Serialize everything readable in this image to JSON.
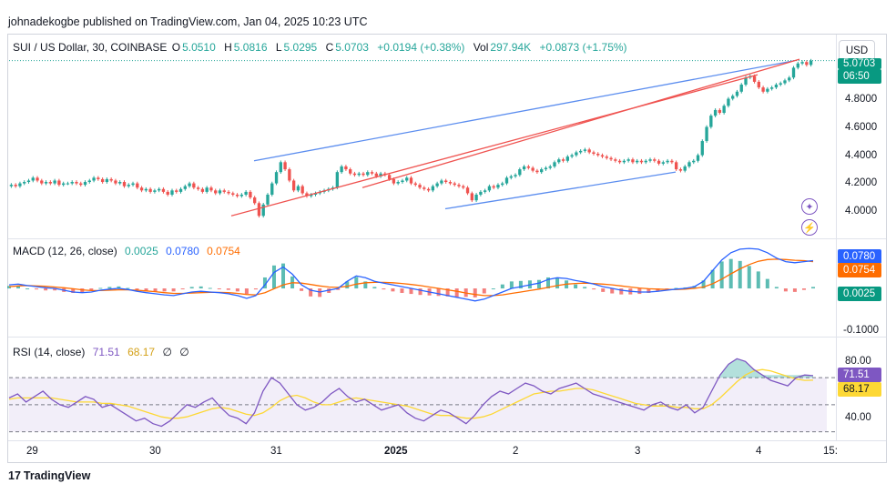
{
  "header": {
    "publisher_line": "johnadekogbe published on TradingView.com, Jan 04, 2025 10:23 UTC"
  },
  "symbol_legend": {
    "title": "SUI / US Dollar, 30, COINBASE",
    "o_label": "O",
    "o_value": "5.0510",
    "h_label": "H",
    "h_value": "5.0816",
    "l_label": "L",
    "l_value": "5.0295",
    "c_label": "C",
    "c_value": "5.0703",
    "change": "+0.0194 (+0.38%)",
    "vol_label": "Vol",
    "vol_value": "297.94K",
    "vol_change": "+0.0873 (+1.75%)"
  },
  "currency_button": "USD",
  "price_tags": {
    "current": "5.0703",
    "countdown": "06:50"
  },
  "price_axis": [
    "4.8000",
    "4.6000",
    "4.4000",
    "4.2000",
    "4.0000"
  ],
  "macd_legend": {
    "title": "MACD (12, 26, close)",
    "v1": "0.0025",
    "v2": "0.0780",
    "v3": "0.0754"
  },
  "macd_axis": {
    "tag_macd": "0.0780",
    "tag_signal": "0.0754",
    "tag_hist": "0.0025",
    "low": "-0.1000"
  },
  "rsi_legend": {
    "title": "RSI (14, close)",
    "rsi": "71.51",
    "ma": "68.17",
    "x1": "∅",
    "x2": "∅"
  },
  "rsi_axis": {
    "high": "80.00",
    "low": "40.00",
    "tag_rsi": "71.51",
    "tag_ma": "68.17"
  },
  "time_axis": [
    "29",
    "30",
    "31",
    "2025",
    "2",
    "3",
    "4",
    "15:"
  ],
  "footer": {
    "logo_mark": "17",
    "logo_text": "TradingView"
  },
  "colors": {
    "up": "#26a69a",
    "down": "#ef5350",
    "macd": "#2962ff",
    "signal": "#ff6d00",
    "rsi": "#7e57c2",
    "rsi_ma": "#fdd835",
    "trend_blue": "#5b8def",
    "trend_red": "#ef5350"
  },
  "chart_data": [
    {
      "type": "candlestick",
      "title": "SUI / US Dollar, 30, COINBASE",
      "ylim": [
        3.92,
        5.1
      ],
      "x_ticks": [
        "29",
        "30",
        "31",
        "2025",
        "2",
        "3",
        "4",
        "15:"
      ],
      "close_series": [
        4.19,
        4.18,
        4.2,
        4.21,
        4.22,
        4.24,
        4.22,
        4.2,
        4.21,
        4.2,
        4.22,
        4.19,
        4.2,
        4.2,
        4.21,
        4.2,
        4.19,
        4.21,
        4.22,
        4.24,
        4.23,
        4.21,
        4.23,
        4.22,
        4.2,
        4.21,
        4.18,
        4.19,
        4.2,
        4.17,
        4.15,
        4.16,
        4.14,
        4.15,
        4.16,
        4.14,
        4.12,
        4.15,
        4.14,
        4.16,
        4.18,
        4.2,
        4.17,
        4.16,
        4.14,
        4.17,
        4.15,
        4.13,
        4.15,
        4.14,
        4.13,
        4.12,
        4.11,
        4.12,
        4.14,
        4.1,
        4.06,
        3.97,
        4.05,
        4.12,
        4.2,
        4.28,
        4.35,
        4.3,
        4.22,
        4.15,
        4.18,
        4.13,
        4.11,
        4.12,
        4.13,
        4.14,
        4.15,
        4.16,
        4.17,
        4.28,
        4.32,
        4.3,
        4.27,
        4.26,
        4.27,
        4.26,
        4.28,
        4.27,
        4.25,
        4.27,
        4.26,
        4.23,
        4.2,
        4.21,
        4.22,
        4.24,
        4.2,
        4.19,
        4.17,
        4.16,
        4.15,
        4.18,
        4.2,
        4.22,
        4.21,
        4.2,
        4.19,
        4.18,
        4.17,
        4.13,
        4.08,
        4.12,
        4.14,
        4.15,
        4.18,
        4.17,
        4.19,
        4.2,
        4.24,
        4.25,
        4.26,
        4.3,
        4.32,
        4.31,
        4.29,
        4.28,
        4.3,
        4.31,
        4.32,
        4.35,
        4.37,
        4.36,
        4.39,
        4.4,
        4.42,
        4.43,
        4.44,
        4.42,
        4.41,
        4.4,
        4.39,
        4.38,
        4.37,
        4.36,
        4.35,
        4.36,
        4.37,
        4.35,
        4.36,
        4.35,
        4.36,
        4.37,
        4.36,
        4.34,
        4.35,
        4.36,
        4.35,
        4.3,
        4.29,
        4.32,
        4.35,
        4.36,
        4.4,
        4.5,
        4.6,
        4.68,
        4.72,
        4.7,
        4.75,
        4.8,
        4.82,
        4.85,
        4.9,
        4.95,
        4.96,
        4.92,
        4.88,
        4.85,
        4.87,
        4.88,
        4.9,
        4.91,
        4.93,
        4.95,
        5.02,
        5.05,
        5.06,
        5.04,
        5.07
      ],
      "trend_lines": [
        {
          "color": "blue",
          "from": [
            "31 (early)",
            4.36
          ],
          "to": [
            "4 (late)",
            5.05
          ]
        },
        {
          "color": "blue",
          "from": [
            "2025 (mid)",
            4.02
          ],
          "to": [
            "3 (mid)",
            4.28
          ]
        },
        {
          "color": "red",
          "from": [
            "30 (late)",
            3.97
          ],
          "to": [
            "4 (early)",
            4.97
          ]
        },
        {
          "color": "red",
          "from": [
            "31 (late)",
            4.17
          ],
          "to": [
            "4 (late)",
            5.07
          ]
        }
      ]
    },
    {
      "type": "line",
      "title": "MACD (12, 26, close)",
      "series": [
        {
          "name": "MACD",
          "values": [
            0.01,
            0.012,
            0.008,
            0.005,
            0.002,
            0.0,
            -0.005,
            -0.01,
            -0.012,
            -0.01,
            -0.005,
            -0.002,
            0.0,
            -0.003,
            -0.008,
            -0.012,
            -0.015,
            -0.018,
            -0.02,
            -0.015,
            -0.01,
            -0.008,
            -0.01,
            -0.012,
            -0.015,
            -0.02,
            -0.028,
            -0.02,
            0.01,
            0.045,
            0.06,
            0.04,
            0.01,
            -0.005,
            -0.01,
            -0.005,
            0.0,
            0.02,
            0.035,
            0.03,
            0.02,
            0.015,
            0.01,
            0.005,
            0.0,
            -0.005,
            -0.01,
            -0.015,
            -0.02,
            -0.025,
            -0.03,
            -0.035,
            -0.03,
            -0.02,
            -0.01,
            0.0,
            0.005,
            0.01,
            0.015,
            0.025,
            0.03,
            0.028,
            0.022,
            0.018,
            0.012,
            0.005,
            0.0,
            -0.005,
            -0.008,
            -0.01,
            -0.01,
            -0.008,
            -0.005,
            -0.002,
            0.0,
            0.005,
            0.02,
            0.05,
            0.08,
            0.1,
            0.11,
            0.112,
            0.11,
            0.1,
            0.085,
            0.075,
            0.072,
            0.075,
            0.078
          ]
        },
        {
          "name": "Signal",
          "values": [
            0.005,
            0.007,
            0.008,
            0.007,
            0.006,
            0.004,
            0.002,
            -0.001,
            -0.004,
            -0.006,
            -0.006,
            -0.005,
            -0.004,
            -0.004,
            -0.005,
            -0.007,
            -0.009,
            -0.012,
            -0.014,
            -0.014,
            -0.013,
            -0.012,
            -0.011,
            -0.011,
            -0.012,
            -0.014,
            -0.017,
            -0.018,
            -0.012,
            -0.001,
            0.01,
            0.016,
            0.015,
            0.011,
            0.007,
            0.004,
            0.003,
            0.006,
            0.012,
            0.016,
            0.017,
            0.017,
            0.016,
            0.014,
            0.011,
            0.008,
            0.004,
            0.0,
            -0.004,
            -0.008,
            -0.013,
            -0.017,
            -0.02,
            -0.02,
            -0.018,
            -0.014,
            -0.01,
            -0.006,
            -0.002,
            0.003,
            0.008,
            0.012,
            0.014,
            0.015,
            0.014,
            0.012,
            0.01,
            0.007,
            0.004,
            0.001,
            -0.001,
            -0.002,
            -0.003,
            -0.003,
            -0.002,
            0.0,
            0.004,
            0.013,
            0.026,
            0.041,
            0.055,
            0.067,
            0.076,
            0.081,
            0.082,
            0.081,
            0.079,
            0.078,
            0.075
          ]
        }
      ],
      "ylim": [
        -0.13,
        0.12
      ],
      "y_ticks": [
        "-0.1000"
      ]
    },
    {
      "type": "line",
      "title": "RSI (14, close)",
      "series": [
        {
          "name": "RSI",
          "values": [
            55,
            58,
            52,
            56,
            60,
            54,
            50,
            48,
            52,
            56,
            54,
            48,
            50,
            46,
            42,
            38,
            40,
            36,
            34,
            38,
            44,
            50,
            48,
            52,
            55,
            48,
            42,
            40,
            36,
            44,
            60,
            70,
            66,
            58,
            50,
            46,
            48,
            52,
            58,
            62,
            56,
            52,
            54,
            50,
            46,
            48,
            50,
            44,
            40,
            38,
            42,
            46,
            44,
            40,
            36,
            42,
            50,
            56,
            60,
            58,
            62,
            66,
            64,
            60,
            58,
            62,
            64,
            66,
            62,
            58,
            56,
            54,
            52,
            50,
            48,
            46,
            50,
            52,
            48,
            46,
            50,
            44,
            48,
            60,
            72,
            80,
            84,
            82,
            76,
            72,
            68,
            66,
            64,
            70,
            72,
            71.51
          ]
        },
        {
          "name": "RSI-based MA",
          "values": [
            54,
            55,
            55,
            55,
            55,
            55,
            54,
            53,
            52,
            52,
            52,
            51,
            51,
            50,
            49,
            47,
            45,
            43,
            41,
            40,
            40,
            41,
            43,
            45,
            47,
            48,
            47,
            45,
            43,
            42,
            44,
            48,
            53,
            56,
            57,
            55,
            52,
            50,
            50,
            52,
            54,
            55,
            54,
            53,
            52,
            51,
            50,
            49,
            47,
            45,
            43,
            42,
            42,
            41,
            40,
            40,
            41,
            43,
            46,
            49,
            52,
            55,
            58,
            59,
            60,
            60,
            61,
            62,
            62,
            61,
            59,
            57,
            55,
            53,
            51,
            50,
            49,
            49,
            49,
            48,
            48,
            47,
            47,
            50,
            55,
            61,
            67,
            72,
            75,
            76,
            75,
            73,
            71,
            69,
            68,
            68.17
          ]
        }
      ],
      "ylim": [
        25,
        95
      ],
      "y_ticks": [
        "80.00",
        "40.00"
      ]
    }
  ]
}
